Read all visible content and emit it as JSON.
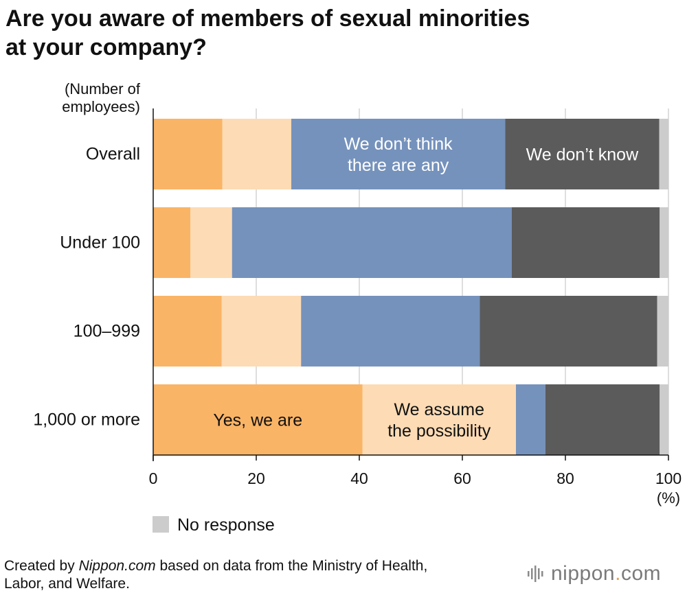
{
  "header": {
    "title_line1": "Are you aware of members of sexual minorities",
    "title_line2": "at your company?"
  },
  "chart_data": {
    "type": "bar",
    "orientation": "horizontal",
    "stacked": true,
    "title": "Are you aware of members of sexual minorities at your company?",
    "ylabel_line1": "(Number of",
    "ylabel_line2": "employees)",
    "xlabel": "(%)",
    "xlim": [
      0,
      100
    ],
    "xticks": [
      "0",
      "20",
      "40",
      "60",
      "80",
      "100"
    ],
    "grid": true,
    "categories": [
      "Overall",
      "Under 100",
      "100–999",
      "1,000 or more"
    ],
    "series": [
      {
        "name": "Yes, we are",
        "color": "#fab466",
        "values": [
          13.4,
          7.2,
          13.3,
          40.6
        ]
      },
      {
        "name": "We assume the possibility",
        "color": "#fddbb4",
        "values": [
          13.4,
          8.1,
          15.4,
          29.8
        ]
      },
      {
        "name": "We don’t think there are any",
        "color": "#7592bc",
        "values": [
          41.5,
          54.3,
          34.7,
          5.7
        ]
      },
      {
        "name": "We don’t know",
        "color": "#5b5b5b",
        "values": [
          29.9,
          28.7,
          34.4,
          22.2
        ]
      },
      {
        "name": "No response",
        "color": "#cccccc",
        "values": [
          1.8,
          1.7,
          2.2,
          1.7
        ]
      }
    ],
    "in_bar_labels": [
      {
        "series": 2,
        "category": 0,
        "lines": [
          "We don’t think",
          "there are any"
        ],
        "color": "#ffffff"
      },
      {
        "series": 3,
        "category": 0,
        "lines": [
          "We don’t know"
        ],
        "color": "#ffffff"
      },
      {
        "series": 0,
        "category": 3,
        "lines": [
          "Yes, we are"
        ],
        "color": "#111111"
      },
      {
        "series": 1,
        "category": 3,
        "lines": [
          "We assume",
          "the possibility"
        ],
        "color": "#111111"
      }
    ],
    "legend": {
      "label": "No response",
      "color": "#cccccc",
      "placement": "bottom-left"
    }
  },
  "footer": {
    "prefix": "Created by ",
    "site": "Nippon.com",
    "suffix_line1": " based on data from the Ministry of Health,",
    "line2": "Labor, and Welfare."
  },
  "logo": {
    "name_main": "nippon",
    "name_dot": ".",
    "name_tld": "com",
    "icon": "nippon-logo-icon",
    "color": "#7a7a7a",
    "accent": "#e2a15a"
  }
}
